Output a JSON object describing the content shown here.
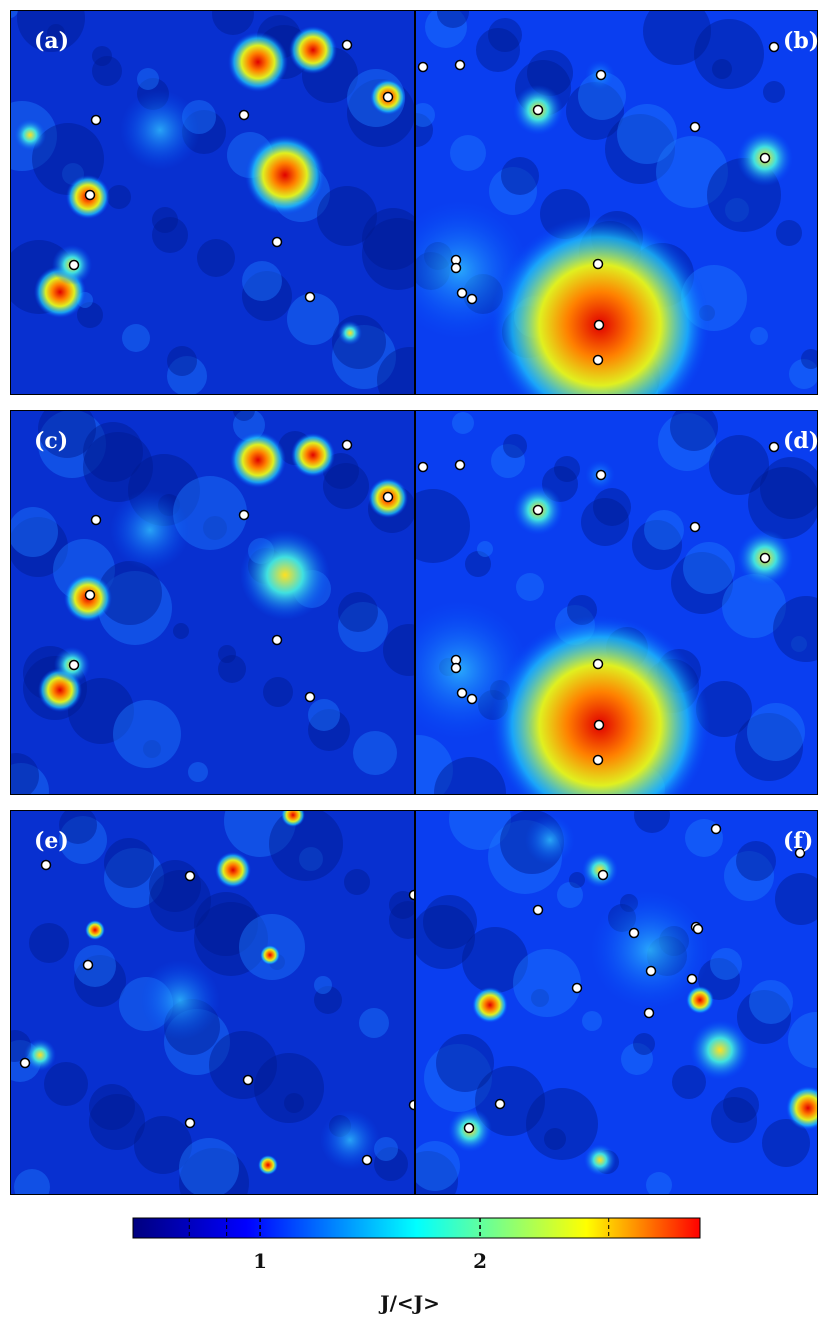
{
  "panels": [
    {
      "label": "(a)"
    },
    {
      "label": "(b)"
    },
    {
      "label": "(c)"
    },
    {
      "label": "(d)"
    },
    {
      "label": "(e)"
    },
    {
      "label": "(f)"
    }
  ],
  "colorbar": {
    "label": "J/<J>",
    "log_scale": true,
    "lim": [
      0.67,
      4
    ],
    "ticks": [
      1,
      2
    ],
    "minor_ticks": [
      0.8,
      0.9,
      3
    ]
  }
}
